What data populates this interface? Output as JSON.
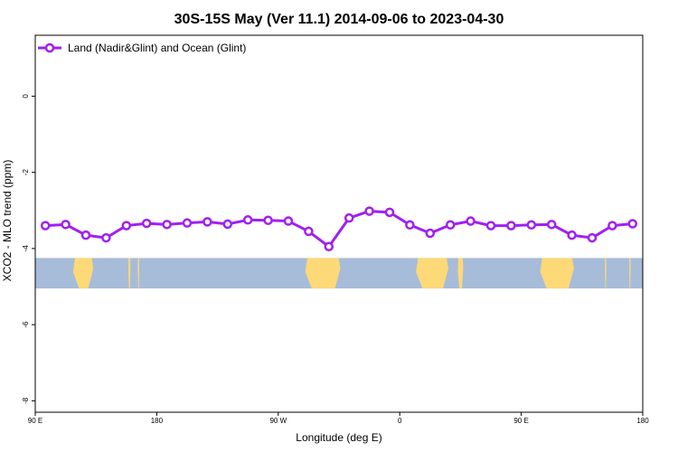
{
  "chart_data": {
    "type": "line",
    "title": "30S-15S May (Ver 11.1)   2014-09-06 to 2023-04-30",
    "xlabel": "Longitude (deg E)",
    "ylabel": "XCO2 - MLO trend (ppm)",
    "x_axis": {
      "range_deg_east_unwrapped": [
        90,
        540
      ],
      "ticks": [
        {
          "value": 90,
          "label": "90 E"
        },
        {
          "value": 180,
          "label": "180"
        },
        {
          "value": 270,
          "label": "90 W"
        },
        {
          "value": 360,
          "label": "0"
        },
        {
          "value": 450,
          "label": "90 E"
        },
        {
          "value": 540,
          "label": "180"
        }
      ]
    },
    "y_axis": {
      "range": [
        -8.3,
        1.6
      ],
      "ticks": [
        {
          "value": 0,
          "label": "0"
        },
        {
          "value": -2,
          "label": "-2"
        },
        {
          "value": -4,
          "label": "-4"
        },
        {
          "value": -6,
          "label": "-6"
        },
        {
          "value": -8,
          "label": "-8"
        }
      ]
    },
    "grid": false,
    "legend": {
      "placement": "top-left"
    },
    "series": [
      {
        "name": "Land (Nadir&Glint) and Ocean (Glint)",
        "color": "#a020f0",
        "marker": "open-circle",
        "x": [
          97.5,
          112.5,
          127.5,
          142.5,
          157.5,
          172.5,
          187.5,
          202.5,
          217.5,
          232.5,
          247.5,
          262.5,
          277.5,
          292.5,
          307.5,
          322.5,
          337.5,
          352.5,
          367.5,
          382.5,
          397.5,
          412.5,
          427.5,
          442.5,
          457.5,
          472.5,
          487.5,
          502.5,
          517.5,
          532.5
        ],
        "y": [
          -3.4,
          -3.37,
          -3.65,
          -3.72,
          -3.4,
          -3.34,
          -3.37,
          -3.33,
          -3.3,
          -3.36,
          -3.25,
          -3.26,
          -3.28,
          -3.55,
          -3.95,
          -3.2,
          -3.02,
          -3.05,
          -3.38,
          -3.6,
          -3.38,
          -3.28,
          -3.4,
          -3.4,
          -3.38,
          -3.37,
          -3.65,
          -3.72,
          -3.4,
          -3.35
        ]
      }
    ],
    "background_map": {
      "latitude_band": "30S-15S",
      "y_top": -4.25,
      "y_bottom": -5.05,
      "ocean_color": "#a7bcd9",
      "land_color": "#fdd977",
      "land_spans_deg_east_unwrapped": [
        [
          118,
          133
        ],
        [
          159,
          160.5
        ],
        [
          166,
          167
        ],
        [
          290,
          316
        ],
        [
          372,
          396
        ],
        [
          403,
          407
        ],
        [
          464,
          489
        ],
        [
          512,
          513
        ],
        [
          530,
          531
        ]
      ]
    }
  }
}
